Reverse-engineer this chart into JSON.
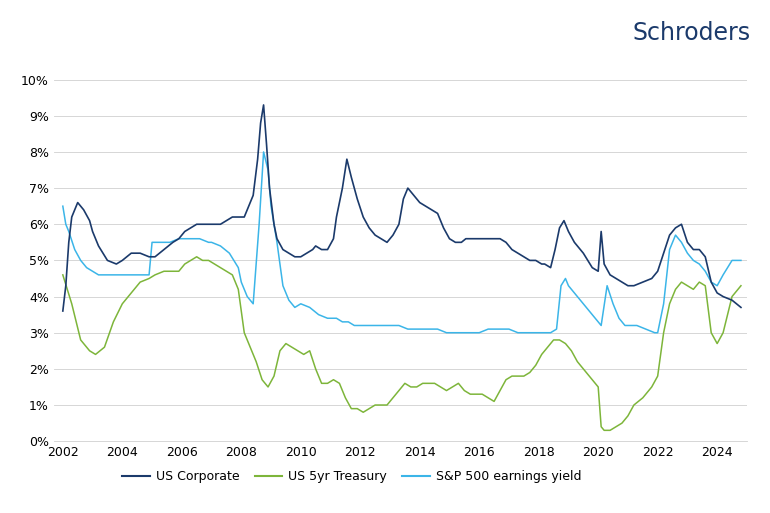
{
  "title": "Schroders",
  "background_color": "#ffffff",
  "ylim": [
    0,
    0.105
  ],
  "yticks": [
    0.0,
    0.01,
    0.02,
    0.03,
    0.04,
    0.05,
    0.06,
    0.07,
    0.08,
    0.09,
    0.1
  ],
  "ytick_labels": [
    "0%",
    "1%",
    "2%",
    "3%",
    "4%",
    "5%",
    "6%",
    "7%",
    "8%",
    "9%",
    "10%"
  ],
  "xlim_start": 2001.7,
  "xlim_end": 2025.0,
  "xticks": [
    2002,
    2004,
    2006,
    2008,
    2010,
    2012,
    2014,
    2016,
    2018,
    2020,
    2022,
    2024
  ],
  "line_colors": {
    "us_corporate": "#1b3a6b",
    "us_treasury": "#7db53a",
    "sp500": "#3bb5e8"
  },
  "legend_labels": [
    "US Corporate",
    "US 5yr Treasury",
    "S&P 500 earnings yield"
  ],
  "grid_color": "#d0d0d0",
  "us_corporate": {
    "x": [
      2002.0,
      2002.1,
      2002.2,
      2002.3,
      2002.5,
      2002.7,
      2002.9,
      2003.0,
      2003.2,
      2003.5,
      2003.8,
      2004.0,
      2004.3,
      2004.6,
      2004.9,
      2005.1,
      2005.4,
      2005.7,
      2005.9,
      2006.1,
      2006.3,
      2006.5,
      2006.7,
      2006.9,
      2007.1,
      2007.3,
      2007.5,
      2007.7,
      2007.9,
      2008.1,
      2008.2,
      2008.3,
      2008.4,
      2008.55,
      2008.65,
      2008.75,
      2008.85,
      2008.95,
      2009.1,
      2009.2,
      2009.4,
      2009.6,
      2009.8,
      2010.0,
      2010.2,
      2010.4,
      2010.5,
      2010.7,
      2010.9,
      2011.1,
      2011.2,
      2011.4,
      2011.55,
      2011.7,
      2011.9,
      2012.1,
      2012.3,
      2012.5,
      2012.7,
      2012.9,
      2013.1,
      2013.3,
      2013.45,
      2013.6,
      2013.8,
      2014.0,
      2014.2,
      2014.4,
      2014.6,
      2014.8,
      2015.0,
      2015.2,
      2015.4,
      2015.55,
      2015.7,
      2015.9,
      2016.1,
      2016.3,
      2016.5,
      2016.7,
      2016.9,
      2017.1,
      2017.3,
      2017.5,
      2017.7,
      2017.9,
      2018.1,
      2018.2,
      2018.4,
      2018.55,
      2018.7,
      2018.85,
      2019.0,
      2019.2,
      2019.5,
      2019.8,
      2020.0,
      2020.1,
      2020.2,
      2020.4,
      2020.6,
      2020.8,
      2021.0,
      2021.2,
      2021.5,
      2021.8,
      2022.0,
      2022.2,
      2022.4,
      2022.6,
      2022.8,
      2023.0,
      2023.2,
      2023.4,
      2023.6,
      2023.8,
      2024.0,
      2024.2,
      2024.5,
      2024.8
    ],
    "y": [
      0.036,
      0.043,
      0.055,
      0.062,
      0.066,
      0.064,
      0.061,
      0.058,
      0.054,
      0.05,
      0.049,
      0.05,
      0.052,
      0.052,
      0.051,
      0.051,
      0.053,
      0.055,
      0.056,
      0.058,
      0.059,
      0.06,
      0.06,
      0.06,
      0.06,
      0.06,
      0.061,
      0.062,
      0.062,
      0.062,
      0.064,
      0.066,
      0.068,
      0.078,
      0.088,
      0.093,
      0.082,
      0.07,
      0.06,
      0.056,
      0.053,
      0.052,
      0.051,
      0.051,
      0.052,
      0.053,
      0.054,
      0.053,
      0.053,
      0.056,
      0.062,
      0.07,
      0.078,
      0.073,
      0.067,
      0.062,
      0.059,
      0.057,
      0.056,
      0.055,
      0.057,
      0.06,
      0.067,
      0.07,
      0.068,
      0.066,
      0.065,
      0.064,
      0.063,
      0.059,
      0.056,
      0.055,
      0.055,
      0.056,
      0.056,
      0.056,
      0.056,
      0.056,
      0.056,
      0.056,
      0.055,
      0.053,
      0.052,
      0.051,
      0.05,
      0.05,
      0.049,
      0.049,
      0.048,
      0.053,
      0.059,
      0.061,
      0.058,
      0.055,
      0.052,
      0.048,
      0.047,
      0.058,
      0.049,
      0.046,
      0.045,
      0.044,
      0.043,
      0.043,
      0.044,
      0.045,
      0.047,
      0.052,
      0.057,
      0.059,
      0.06,
      0.055,
      0.053,
      0.053,
      0.051,
      0.044,
      0.041,
      0.04,
      0.039,
      0.037
    ]
  },
  "us_treasury": {
    "x": [
      2002.0,
      2002.3,
      2002.6,
      2002.9,
      2003.1,
      2003.4,
      2003.7,
      2004.0,
      2004.3,
      2004.6,
      2004.9,
      2005.1,
      2005.4,
      2005.7,
      2005.9,
      2006.1,
      2006.3,
      2006.5,
      2006.7,
      2006.9,
      2007.1,
      2007.3,
      2007.5,
      2007.7,
      2007.9,
      2008.1,
      2008.3,
      2008.5,
      2008.7,
      2008.9,
      2009.1,
      2009.3,
      2009.5,
      2009.7,
      2009.9,
      2010.1,
      2010.3,
      2010.5,
      2010.7,
      2010.9,
      2011.1,
      2011.3,
      2011.5,
      2011.7,
      2011.9,
      2012.1,
      2012.3,
      2012.5,
      2012.7,
      2012.9,
      2013.1,
      2013.3,
      2013.5,
      2013.7,
      2013.9,
      2014.1,
      2014.3,
      2014.5,
      2014.7,
      2014.9,
      2015.1,
      2015.3,
      2015.5,
      2015.7,
      2015.9,
      2016.1,
      2016.3,
      2016.5,
      2016.7,
      2016.9,
      2017.1,
      2017.3,
      2017.5,
      2017.7,
      2017.9,
      2018.1,
      2018.3,
      2018.5,
      2018.7,
      2018.9,
      2019.1,
      2019.3,
      2019.5,
      2019.7,
      2019.9,
      2020.0,
      2020.1,
      2020.2,
      2020.4,
      2020.6,
      2020.8,
      2021.0,
      2021.2,
      2021.5,
      2021.8,
      2022.0,
      2022.2,
      2022.4,
      2022.6,
      2022.8,
      2023.0,
      2023.2,
      2023.4,
      2023.6,
      2023.8,
      2024.0,
      2024.2,
      2024.5,
      2024.8
    ],
    "y": [
      0.046,
      0.038,
      0.028,
      0.025,
      0.024,
      0.026,
      0.033,
      0.038,
      0.041,
      0.044,
      0.045,
      0.046,
      0.047,
      0.047,
      0.047,
      0.049,
      0.05,
      0.051,
      0.05,
      0.05,
      0.049,
      0.048,
      0.047,
      0.046,
      0.042,
      0.03,
      0.026,
      0.022,
      0.017,
      0.015,
      0.018,
      0.025,
      0.027,
      0.026,
      0.025,
      0.024,
      0.025,
      0.02,
      0.016,
      0.016,
      0.017,
      0.016,
      0.012,
      0.009,
      0.009,
      0.008,
      0.009,
      0.01,
      0.01,
      0.01,
      0.012,
      0.014,
      0.016,
      0.015,
      0.015,
      0.016,
      0.016,
      0.016,
      0.015,
      0.014,
      0.015,
      0.016,
      0.014,
      0.013,
      0.013,
      0.013,
      0.012,
      0.011,
      0.014,
      0.017,
      0.018,
      0.018,
      0.018,
      0.019,
      0.021,
      0.024,
      0.026,
      0.028,
      0.028,
      0.027,
      0.025,
      0.022,
      0.02,
      0.018,
      0.016,
      0.015,
      0.004,
      0.003,
      0.003,
      0.004,
      0.005,
      0.007,
      0.01,
      0.012,
      0.015,
      0.018,
      0.03,
      0.038,
      0.042,
      0.044,
      0.043,
      0.042,
      0.044,
      0.043,
      0.03,
      0.027,
      0.03,
      0.04,
      0.043
    ]
  },
  "sp500": {
    "x": [
      2002.0,
      2002.1,
      2002.2,
      2002.4,
      2002.6,
      2002.8,
      2003.0,
      2003.2,
      2003.5,
      2003.8,
      2004.0,
      2004.3,
      2004.6,
      2004.9,
      2005.0,
      2005.3,
      2005.6,
      2005.9,
      2006.0,
      2006.3,
      2006.6,
      2006.9,
      2007.0,
      2007.3,
      2007.6,
      2007.9,
      2008.0,
      2008.2,
      2008.4,
      2008.6,
      2008.75,
      2008.9,
      2009.0,
      2009.2,
      2009.4,
      2009.6,
      2009.8,
      2010.0,
      2010.3,
      2010.6,
      2010.9,
      2011.0,
      2011.2,
      2011.4,
      2011.6,
      2011.8,
      2012.0,
      2012.3,
      2012.6,
      2012.9,
      2013.0,
      2013.3,
      2013.6,
      2013.9,
      2014.0,
      2014.3,
      2014.6,
      2014.9,
      2015.0,
      2015.3,
      2015.6,
      2015.9,
      2016.0,
      2016.3,
      2016.6,
      2016.9,
      2017.0,
      2017.3,
      2017.6,
      2017.9,
      2018.0,
      2018.2,
      2018.4,
      2018.6,
      2018.75,
      2018.9,
      2019.0,
      2019.3,
      2019.6,
      2019.9,
      2020.0,
      2020.1,
      2020.3,
      2020.5,
      2020.7,
      2020.9,
      2021.0,
      2021.3,
      2021.6,
      2021.9,
      2022.0,
      2022.2,
      2022.4,
      2022.6,
      2022.8,
      2023.0,
      2023.2,
      2023.4,
      2023.6,
      2023.8,
      2024.0,
      2024.2,
      2024.5,
      2024.8
    ],
    "y": [
      0.065,
      0.06,
      0.058,
      0.053,
      0.05,
      0.048,
      0.047,
      0.046,
      0.046,
      0.046,
      0.046,
      0.046,
      0.046,
      0.046,
      0.055,
      0.055,
      0.055,
      0.056,
      0.056,
      0.056,
      0.056,
      0.055,
      0.055,
      0.054,
      0.052,
      0.048,
      0.044,
      0.04,
      0.038,
      0.06,
      0.08,
      0.075,
      0.065,
      0.055,
      0.043,
      0.039,
      0.037,
      0.038,
      0.037,
      0.035,
      0.034,
      0.034,
      0.034,
      0.033,
      0.033,
      0.032,
      0.032,
      0.032,
      0.032,
      0.032,
      0.032,
      0.032,
      0.031,
      0.031,
      0.031,
      0.031,
      0.031,
      0.03,
      0.03,
      0.03,
      0.03,
      0.03,
      0.03,
      0.031,
      0.031,
      0.031,
      0.031,
      0.03,
      0.03,
      0.03,
      0.03,
      0.03,
      0.03,
      0.031,
      0.043,
      0.045,
      0.043,
      0.04,
      0.037,
      0.034,
      0.033,
      0.032,
      0.043,
      0.038,
      0.034,
      0.032,
      0.032,
      0.032,
      0.031,
      0.03,
      0.03,
      0.038,
      0.053,
      0.057,
      0.055,
      0.052,
      0.05,
      0.049,
      0.047,
      0.044,
      0.043,
      0.046,
      0.05,
      0.05
    ]
  }
}
